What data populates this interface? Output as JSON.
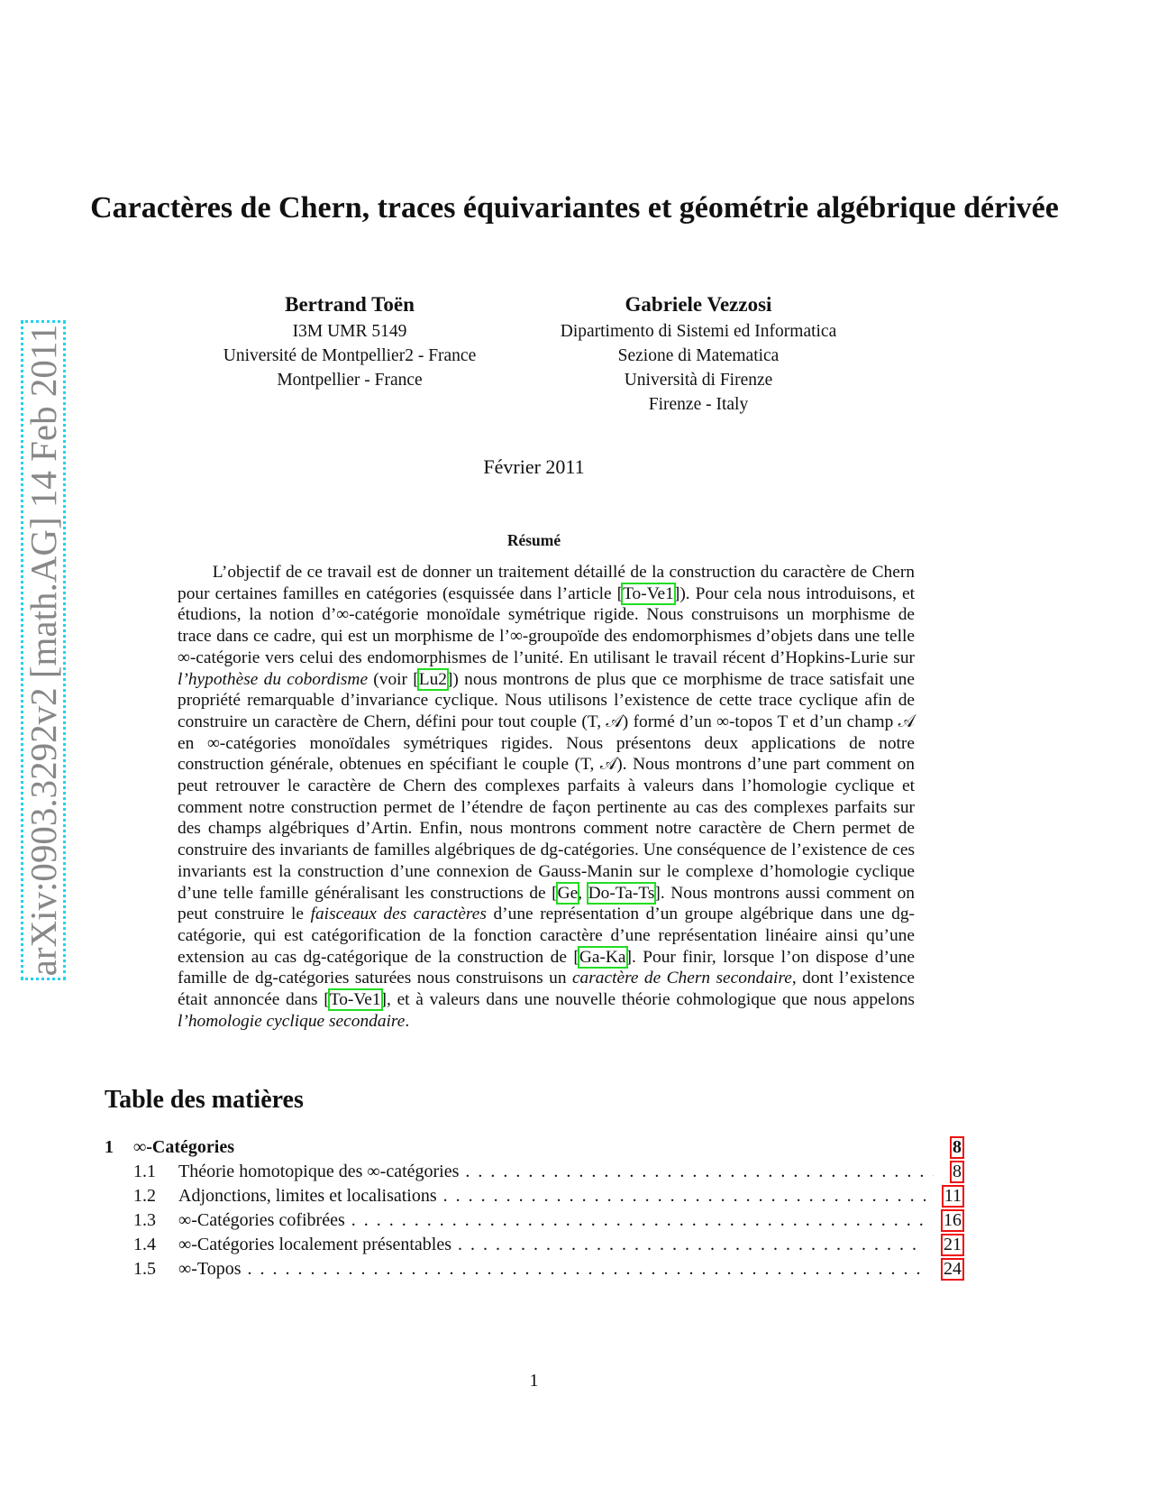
{
  "sidebar": {
    "arxiv_id": "arXiv:0903.3292v2  [math.AG]  14 Feb 2011"
  },
  "title": "Caractères de Chern, traces équivariantes et géométrie algébrique dérivée",
  "authors": [
    {
      "name": "Bertrand Toën",
      "affiliation": [
        "I3M UMR 5149",
        "Université de Montpellier2 - France",
        "Montpellier - France"
      ]
    },
    {
      "name": "Gabriele Vezzosi",
      "affiliation": [
        "Dipartimento di Sistemi ed Informatica",
        "Sezione di Matematica",
        "Università di Firenze",
        "Firenze - Italy"
      ]
    }
  ],
  "date": "Février 2011",
  "abstract": {
    "heading": "Résumé",
    "segments": [
      {
        "t": "L’objectif de ce travail est de donner un traitement détaillé de la construction du caractère de Chern pour certaines familles en catégories (esquissée dans l’article [",
        "k": "text"
      },
      {
        "t": "To-Ve1",
        "k": "cite"
      },
      {
        "t": "]). Pour cela nous introduisons, et étudions, la notion d’∞-catégorie monoïdale symétrique rigide. Nous construisons un morphisme de trace dans ce cadre, qui est un morphisme de l’∞-groupoïde des endomorphismes d’objets dans une telle ∞-catégorie vers celui des endomorphismes de l’unité.  En utilisant le travail récent d’Hopkins-Lurie sur ",
        "k": "text"
      },
      {
        "t": "l’hypothèse du cobordisme",
        "k": "italic"
      },
      {
        "t": " (voir [",
        "k": "text"
      },
      {
        "t": "Lu2",
        "k": "cite"
      },
      {
        "t": "]) nous montrons de plus que ce morphisme de trace satisfait une propriété remarquable d’invariance cyclique. Nous utilisons l’existence de cette trace cyclique afin de construire un caractère de Chern, défini pour tout couple (T, 𝒜) formé d’un ∞-topos T et d’un champ 𝒜 en ∞-catégories monoïdales symétriques rigides. Nous présentons deux applications de notre construction générale, obtenues en spécifiant le couple (T, 𝒜). Nous montrons d’une part comment on peut retrouver le caractère de Chern des complexes parfaits à valeurs dans l’homologie cyclique et comment notre construction permet de l’étendre de façon pertinente au cas des complexes parfaits sur des champs algébriques d’Artin. Enfin, nous montrons comment notre caractère de Chern permet de construire des invariants de familles algébriques de dg-catégories. Une conséquence de l’existence de ces invariants est la construction d’une connexion de Gauss-Manin sur le complexe d’homologie cyclique d’une telle famille généralisant les constructions de [",
        "k": "text"
      },
      {
        "t": "Ge",
        "k": "cite"
      },
      {
        "t": ", ",
        "k": "text"
      },
      {
        "t": "Do-Ta-Ts",
        "k": "cite"
      },
      {
        "t": "]. Nous montrons aussi comment on peut construire le ",
        "k": "text"
      },
      {
        "t": "faisceaux des caractères",
        "k": "italic"
      },
      {
        "t": " d’une représentation d’un groupe algébrique dans une dg-catégorie, qui est catégorification de la fonction caractère d’une représentation linéaire ainsi qu’une extension au cas dg-catégorique de la construction de [",
        "k": "text"
      },
      {
        "t": "Ga-Ka",
        "k": "cite"
      },
      {
        "t": "]. Pour finir, lorsque l’on dispose d’une famille de dg-catégories saturées nous construisons un ",
        "k": "text"
      },
      {
        "t": "caractère de Chern secondaire",
        "k": "italic"
      },
      {
        "t": ", dont l’existence était annoncée dans [",
        "k": "text"
      },
      {
        "t": "To-Ve1",
        "k": "cite"
      },
      {
        "t": "], et à valeurs dans une nouvelle théorie cohmologique que nous appelons ",
        "k": "text"
      },
      {
        "t": "l’homologie cyclique secondaire",
        "k": "italic"
      },
      {
        "t": ".",
        "k": "text"
      }
    ]
  },
  "toc": {
    "heading": "Table des matières",
    "entries": [
      {
        "num": "1",
        "label": "∞-Catégories",
        "page": "8",
        "level": "sec"
      },
      {
        "num": "1.1",
        "label": "Théorie homotopique des ∞-catégories",
        "page": "8",
        "level": "sub"
      },
      {
        "num": "1.2",
        "label": "Adjonctions, limites et localisations",
        "page": "11",
        "level": "sub"
      },
      {
        "num": "1.3",
        "label": "∞-Catégories cofibrées",
        "page": "16",
        "level": "sub"
      },
      {
        "num": "1.4",
        "label": "∞-Catégories localement présentables",
        "page": "21",
        "level": "sub"
      },
      {
        "num": "1.5",
        "label": "∞-Topos",
        "page": "24",
        "level": "sub"
      }
    ]
  },
  "page_number": "1",
  "colors": {
    "citation_box": "#22dd22",
    "toc_link_box": "#ee1111",
    "arxiv_border": "#22d3ee",
    "arxiv_text": "#888888"
  }
}
